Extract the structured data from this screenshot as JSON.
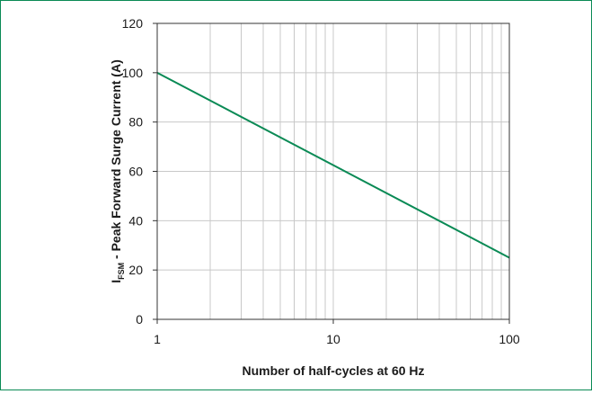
{
  "chart_data": {
    "type": "line",
    "title": "",
    "xlabel": "Number of half-cycles at 60 Hz",
    "ylabel": {
      "main": "I",
      "subscript": "FSM",
      "rest": " - Peak Forward Surge Current (A)"
    },
    "x_scale": "log",
    "xlim": [
      1,
      100
    ],
    "ylim": [
      0,
      120
    ],
    "x_ticks": [
      1,
      10,
      100
    ],
    "x_tick_labels": [
      "1",
      "10",
      "100"
    ],
    "y_ticks": [
      0,
      20,
      40,
      60,
      80,
      100,
      120
    ],
    "y_tick_labels": [
      "0",
      "20",
      "40",
      "60",
      "80",
      "100",
      "120"
    ],
    "grid": true,
    "series": [
      {
        "x": [
          1,
          100
        ],
        "y": [
          100,
          25
        ],
        "color": "#0a8a55"
      }
    ],
    "frame_color": "#0a8a55",
    "grid_color": "#c8c8c8"
  }
}
